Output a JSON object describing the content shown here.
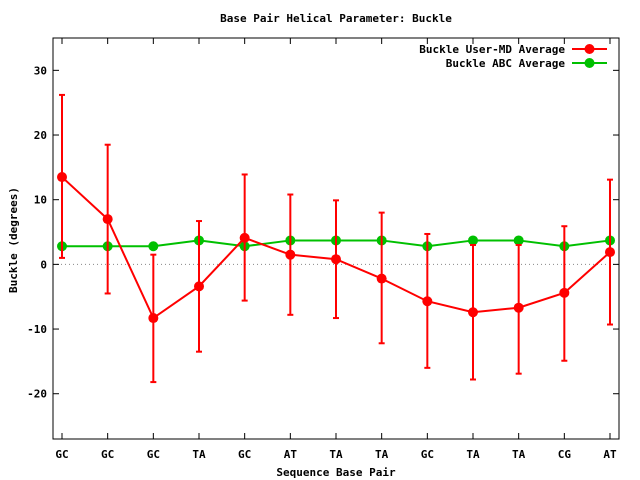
{
  "chart_data": {
    "type": "line",
    "title": "Base Pair Helical Parameter: Buckle",
    "xlabel": "Sequence Base Pair",
    "ylabel": "Buckle (degrees)",
    "categories": [
      "GC",
      "GC",
      "GC",
      "TA",
      "GC",
      "AT",
      "TA",
      "TA",
      "GC",
      "TA",
      "TA",
      "CG",
      "AT"
    ],
    "ylim": [
      -27,
      35
    ],
    "yticks": [
      -20,
      -10,
      0,
      10,
      20,
      30
    ],
    "legend_position": "top-right",
    "series": [
      {
        "name": "Buckle User-MD Average",
        "color": "#ff0000",
        "values": [
          13.5,
          7.0,
          -8.3,
          -3.4,
          4.1,
          1.5,
          0.8,
          -2.2,
          -5.7,
          -7.4,
          -6.7,
          -4.4,
          1.9
        ],
        "error_low": [
          1.0,
          -4.5,
          -18.2,
          -13.5,
          -5.6,
          -7.8,
          -8.3,
          -12.2,
          -16.0,
          -17.8,
          -16.9,
          -14.9,
          -9.3
        ],
        "error_high": [
          26.2,
          18.5,
          1.5,
          6.7,
          13.9,
          10.8,
          9.9,
          8.0,
          4.7,
          3.0,
          3.0,
          5.9,
          13.1
        ]
      },
      {
        "name": "Buckle ABC Average",
        "color": "#00c000",
        "values": [
          2.8,
          2.8,
          2.8,
          3.7,
          2.8,
          3.7,
          3.7,
          3.7,
          2.8,
          3.7,
          3.7,
          2.8,
          3.7
        ]
      }
    ]
  }
}
